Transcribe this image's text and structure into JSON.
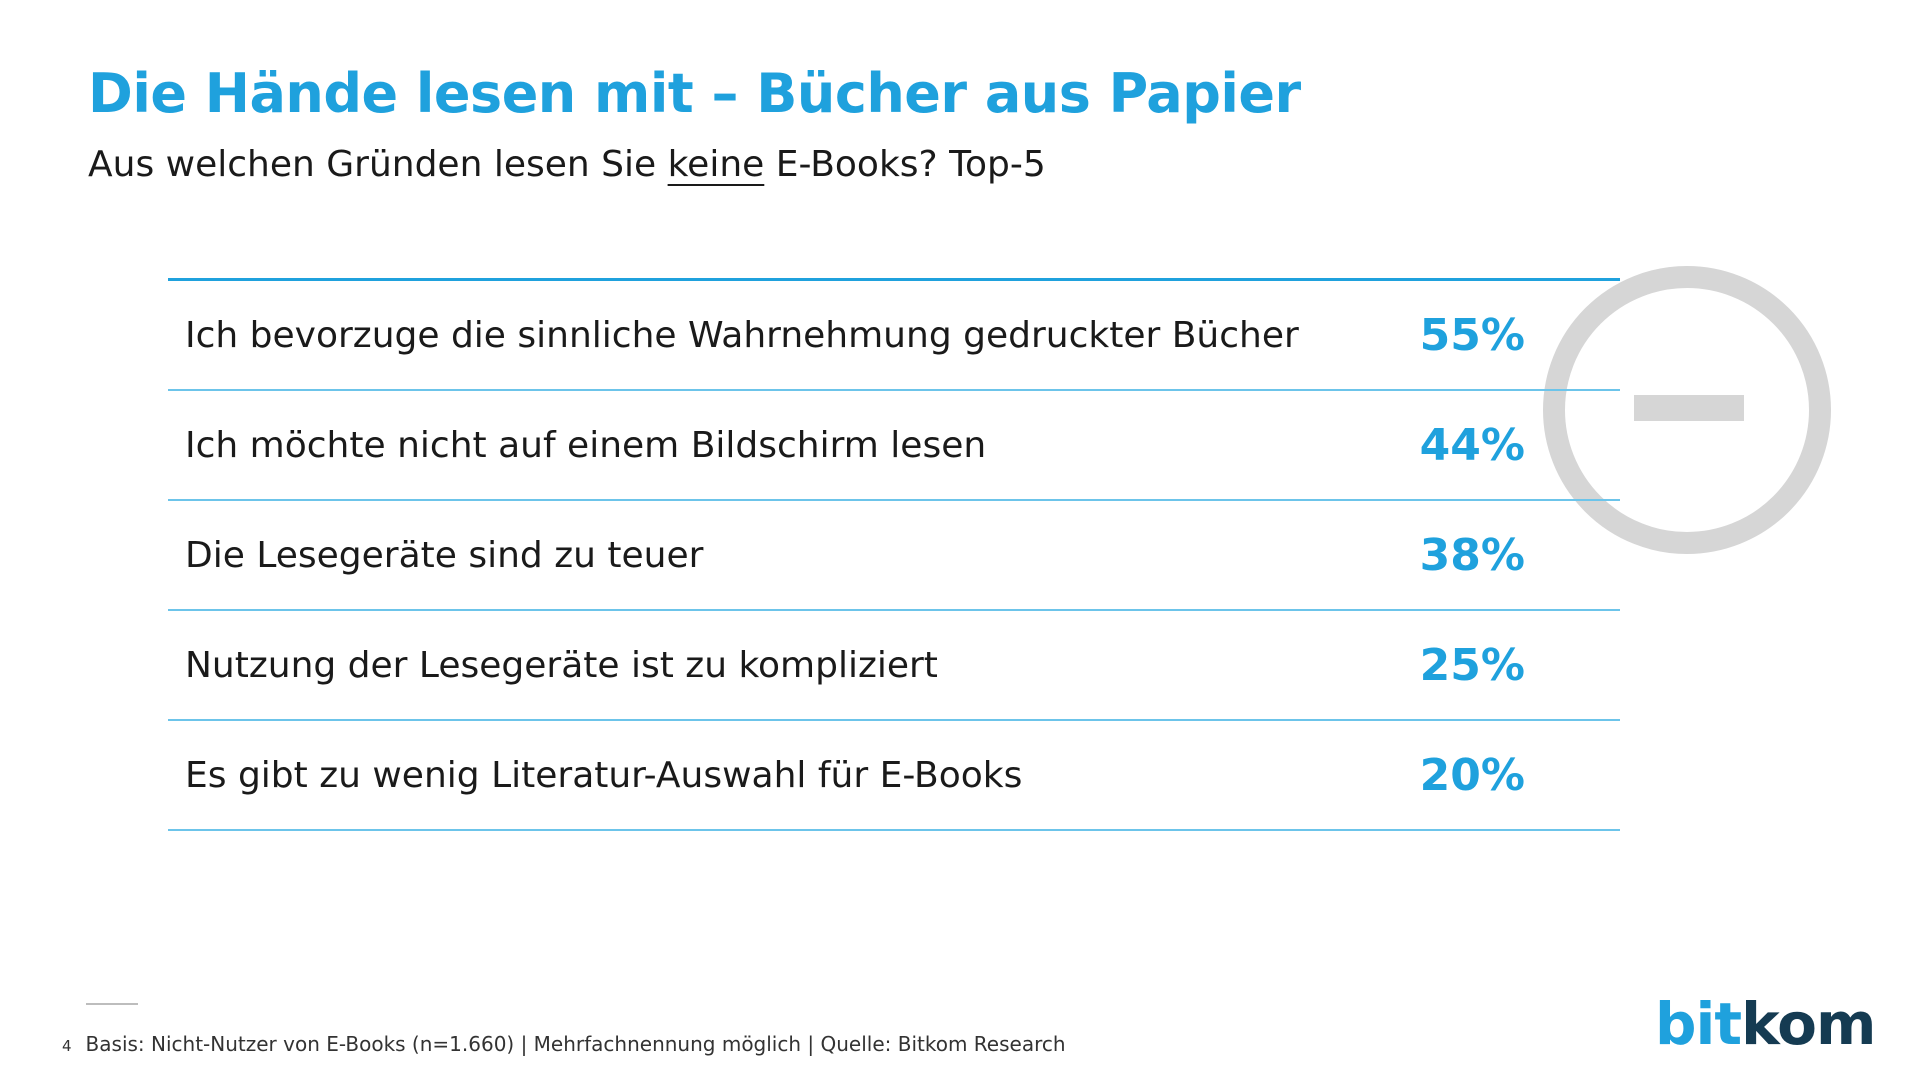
{
  "header": {
    "title": "Die Hände lesen mit – Bücher aus Papier",
    "subtitle_before": "Aus welchen Gründen lesen Sie ",
    "subtitle_keyword": "keine",
    "subtitle_after": " E-Books? Top-5"
  },
  "badge": {
    "icon": "minus-circle-icon",
    "color": "#d6d6d6"
  },
  "chart_data": {
    "type": "table",
    "rows": [
      {
        "label": "Ich bevorzuge die sinnliche Wahrnehmung gedruckter Bücher",
        "value": 55,
        "display": "55%"
      },
      {
        "label": "Ich möchte nicht auf einem Bildschirm lesen",
        "value": 44,
        "display": "44%"
      },
      {
        "label": "Die Lesegeräte sind zu teuer",
        "value": 38,
        "display": "38%"
      },
      {
        "label": "Nutzung der Lesegeräte ist zu kompliziert",
        "value": 25,
        "display": "25%"
      },
      {
        "label": "Es gibt zu wenig Literatur-Auswahl für E-Books",
        "value": 20,
        "display": "20%"
      }
    ],
    "accent_color": "#1fa1dd"
  },
  "footer": {
    "page_number": "4",
    "note": "Basis: Nicht-Nutzer von E-Books (n=1.660) | Mehrfachnennung möglich | Quelle: Bitkom Research"
  },
  "logo": {
    "part1": "bit",
    "part2": "kom"
  }
}
